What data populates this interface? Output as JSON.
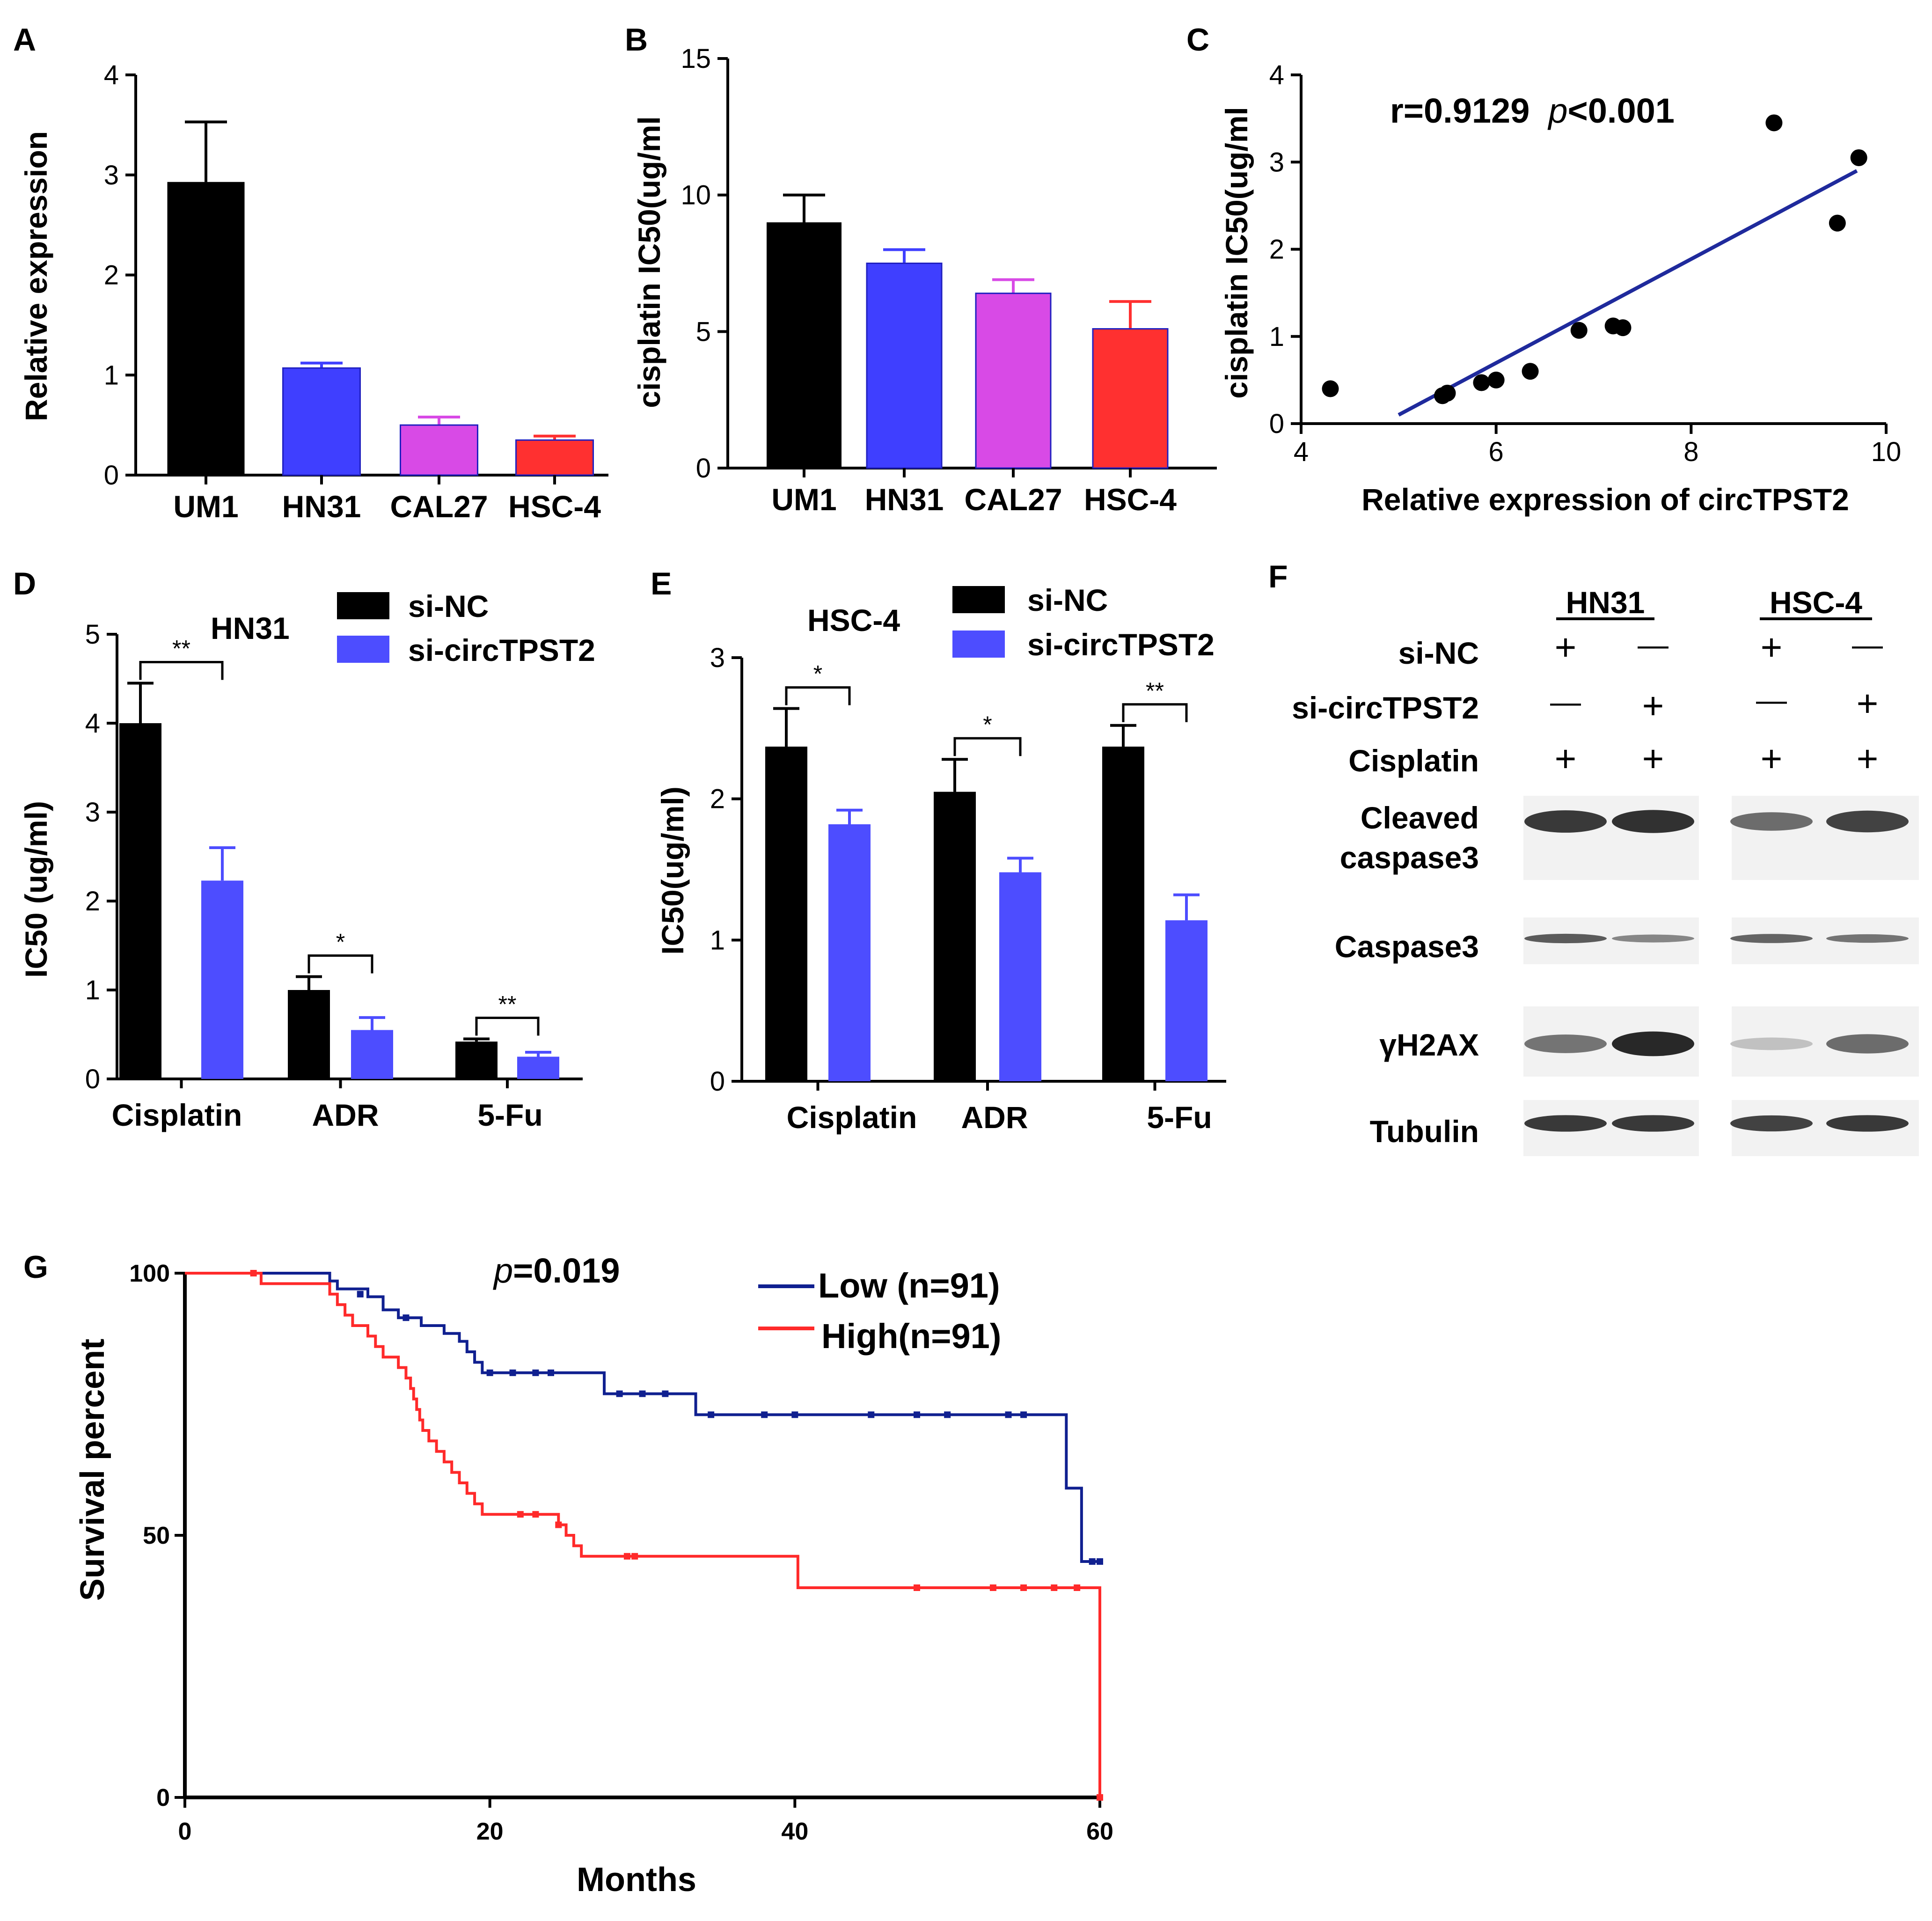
{
  "colors": {
    "black": "#000000",
    "blue": "#3f3fff",
    "magenta": "#d84ae6",
    "red": "#ff3030",
    "navy": "#1f2a9c",
    "km_low": "#102090",
    "km_high": "#ff2a2a"
  },
  "panels": {
    "a": "A",
    "b": "B",
    "c": "C",
    "d": "D",
    "e": "E",
    "f": "F",
    "g": "G"
  },
  "chart_data": [
    {
      "panel": "A",
      "type": "bar",
      "title": "",
      "xlabel": "",
      "ylabel": "Relative expression",
      "ylim": [
        0,
        4
      ],
      "yticks": [
        "0",
        "1",
        "2",
        "3",
        "4"
      ],
      "categories": [
        "UM1",
        "HN31",
        "CAL27",
        "HSC-4"
      ],
      "values": [
        2.93,
        1.07,
        0.5,
        0.35
      ],
      "errors": [
        0.6,
        0.05,
        0.08,
        0.04
      ],
      "bar_colors": [
        "#000000",
        "#3f3fff",
        "#d84ae6",
        "#ff3030"
      ]
    },
    {
      "panel": "B",
      "type": "bar",
      "title": "",
      "xlabel": "",
      "ylabel": "cisplatin IC50(ug/ml",
      "ylim": [
        0,
        15
      ],
      "yticks": [
        "0",
        "5",
        "10",
        "15"
      ],
      "categories": [
        "UM1",
        "HN31",
        "CAL27",
        "HSC-4"
      ],
      "values": [
        9.0,
        7.5,
        6.4,
        5.1
      ],
      "errors": [
        1.0,
        0.5,
        0.5,
        1.0
      ],
      "bar_colors": [
        "#000000",
        "#3f3fff",
        "#d84ae6",
        "#ff3030"
      ]
    },
    {
      "panel": "C",
      "type": "scatter",
      "title": "",
      "annotation_r": "r=0.9129",
      "annotation_p_symbol": "p",
      "annotation_p_value": "<0.001",
      "xlabel": "Relative expression of circTPST2",
      "ylabel": "cisplatin IC50(ug/ml",
      "xlim": [
        4,
        10
      ],
      "ylim": [
        0,
        4
      ],
      "xticks": [
        "4",
        "6",
        "8",
        "10"
      ],
      "yticks": [
        "0",
        "1",
        "2",
        "3",
        "4"
      ],
      "points": [
        [
          4.3,
          0.4
        ],
        [
          5.45,
          0.32
        ],
        [
          5.5,
          0.35
        ],
        [
          5.85,
          0.47
        ],
        [
          6.0,
          0.5
        ],
        [
          6.35,
          0.6
        ],
        [
          6.85,
          1.07
        ],
        [
          7.2,
          1.12
        ],
        [
          7.3,
          1.1
        ],
        [
          8.85,
          3.45
        ],
        [
          9.5,
          2.3
        ],
        [
          9.72,
          3.05
        ]
      ],
      "fit_line": [
        [
          5.0,
          0.1
        ],
        [
          9.7,
          2.9
        ]
      ]
    },
    {
      "panel": "D",
      "type": "bar",
      "title": "HN31",
      "xlabel": "",
      "ylabel": "IC50 (ug/ml)",
      "ylim": [
        0,
        5
      ],
      "yticks": [
        "0",
        "1",
        "2",
        "3",
        "4",
        "5"
      ],
      "categories": [
        "Cisplatin",
        "ADR",
        "5-Fu"
      ],
      "series": [
        {
          "name": "si-NC",
          "color": "#000000",
          "values": [
            4.0,
            1.0,
            0.42
          ],
          "errors": [
            0.45,
            0.15,
            0.03
          ]
        },
        {
          "name": "si-circTPST2",
          "color": "#4d4dff",
          "values": [
            2.23,
            0.55,
            0.25
          ],
          "errors": [
            0.37,
            0.14,
            0.05
          ]
        }
      ],
      "significance": [
        "**",
        "*",
        "**"
      ]
    },
    {
      "panel": "E",
      "type": "bar",
      "title": "HSC-4",
      "xlabel": "",
      "ylabel": "IC50(ug/ml)",
      "ylim": [
        0,
        3
      ],
      "yticks": [
        "0",
        "1",
        "2",
        "3"
      ],
      "categories": [
        "Cisplatin",
        "ADR",
        "5-Fu"
      ],
      "series": [
        {
          "name": "si-NC",
          "color": "#000000",
          "values": [
            2.37,
            2.05,
            2.37
          ],
          "errors": [
            0.27,
            0.23,
            0.15
          ]
        },
        {
          "name": "si-circTPST2",
          "color": "#4d4dff",
          "values": [
            1.82,
            1.48,
            1.14
          ],
          "errors": [
            0.1,
            0.1,
            0.18
          ]
        }
      ],
      "significance": [
        "*",
        "*",
        "**"
      ]
    },
    {
      "panel": "G",
      "type": "line",
      "title": "",
      "annotation_p_symbol": "p",
      "annotation_p_value": "=0.019",
      "xlabel": "Months",
      "ylabel": "Survival percent",
      "xlim": [
        0,
        60
      ],
      "ylim": [
        0,
        100
      ],
      "xticks": [
        "0",
        "20",
        "40",
        "60"
      ],
      "yticks": [
        "0",
        "50",
        "100"
      ],
      "series": [
        {
          "name": "Low (n=91)",
          "color": "#102090",
          "steps": [
            [
              0,
              100
            ],
            [
              9,
              100
            ],
            [
              9.5,
              98.5
            ],
            [
              10,
              97
            ],
            [
              12,
              95.5
            ],
            [
              13,
              93
            ],
            [
              14,
              91.5
            ],
            [
              15.5,
              90
            ],
            [
              17,
              88.5
            ],
            [
              18,
              87
            ],
            [
              18.5,
              85
            ],
            [
              19,
              83
            ],
            [
              19.5,
              81
            ],
            [
              27,
              81
            ],
            [
              27.5,
              77
            ],
            [
              33,
              77
            ],
            [
              33.5,
              73
            ],
            [
              57.5,
              73
            ],
            [
              57.8,
              59
            ],
            [
              58.5,
              59
            ],
            [
              58.8,
              45
            ],
            [
              60,
              45
            ]
          ],
          "censors": [
            [
              11.5,
              96
            ],
            [
              14.5,
              91.5
            ],
            [
              20,
              81
            ],
            [
              21.5,
              81
            ],
            [
              23,
              81
            ],
            [
              24,
              81
            ],
            [
              28.5,
              77
            ],
            [
              30,
              77
            ],
            [
              31.5,
              77
            ],
            [
              34.5,
              73
            ],
            [
              38,
              73
            ],
            [
              40,
              73
            ],
            [
              45,
              73
            ],
            [
              48,
              73
            ],
            [
              50,
              73
            ],
            [
              54,
              73
            ],
            [
              55,
              73
            ],
            [
              59.5,
              45
            ],
            [
              60,
              45
            ]
          ]
        },
        {
          "name": "High(n=91)",
          "color": "#ff2a2a",
          "steps": [
            [
              0,
              100
            ],
            [
              4.5,
              100
            ],
            [
              5,
              98
            ],
            [
              9,
              98
            ],
            [
              9.5,
              96
            ],
            [
              10,
              94
            ],
            [
              10.5,
              92
            ],
            [
              11,
              90
            ],
            [
              12,
              88
            ],
            [
              12.5,
              86
            ],
            [
              13,
              84
            ],
            [
              14,
              82
            ],
            [
              14.5,
              80
            ],
            [
              14.8,
              78
            ],
            [
              15,
              76
            ],
            [
              15.2,
              74
            ],
            [
              15.4,
              72
            ],
            [
              15.6,
              70
            ],
            [
              16,
              68
            ],
            [
              16.5,
              66
            ],
            [
              17,
              64
            ],
            [
              17.5,
              62
            ],
            [
              18,
              60
            ],
            [
              18.5,
              58
            ],
            [
              19,
              56
            ],
            [
              19.5,
              54
            ],
            [
              24,
              54
            ],
            [
              24.5,
              52
            ],
            [
              25,
              50
            ],
            [
              25.5,
              48
            ],
            [
              26,
              46
            ],
            [
              40,
              46
            ],
            [
              40.2,
              40
            ],
            [
              60,
              40
            ],
            [
              60,
              0
            ]
          ],
          "censors": [
            [
              4.5,
              100
            ],
            [
              22,
              54
            ],
            [
              23,
              54
            ],
            [
              24.5,
              52
            ],
            [
              29,
              46
            ],
            [
              29.5,
              46
            ],
            [
              48,
              40
            ],
            [
              53,
              40
            ],
            [
              55,
              40
            ],
            [
              57,
              40
            ],
            [
              58.5,
              40
            ],
            [
              60,
              0
            ]
          ]
        }
      ]
    }
  ],
  "blot": {
    "groups": [
      "HN31",
      "HSC-4"
    ],
    "row_labels": [
      "si-NC",
      "si-circTPST2",
      "Cisplatin"
    ],
    "signs": [
      [
        "+",
        "—",
        "+",
        "—"
      ],
      [
        "—",
        "+",
        "—",
        "+"
      ],
      [
        "+",
        "+",
        "+",
        "+"
      ]
    ],
    "band_labels": [
      "Cleaved",
      "caspase3",
      "Caspase3",
      "γH2AX",
      "Tubulin"
    ],
    "band_intensity": {
      "cleaved_caspase3": [
        0.9,
        0.95,
        0.6,
        0.85
      ],
      "caspase3": [
        0.7,
        0.45,
        0.65,
        0.55
      ],
      "gh2ax": [
        0.55,
        1.0,
        0.1,
        0.6
      ],
      "tubulin": [
        0.9,
        0.9,
        0.85,
        0.9
      ]
    }
  }
}
